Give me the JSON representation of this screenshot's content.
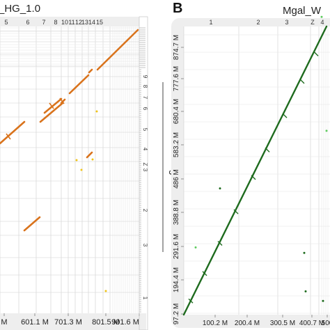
{
  "chart_data": [
    {
      "type": "scatter",
      "panel": "A",
      "title": "_HG_1.0",
      "ylabel": "",
      "top_chrom_labels": [
        "5",
        "6",
        "7",
        "8",
        "10",
        "11",
        "12",
        "13",
        "14",
        "15"
      ],
      "right_chrom_labels": [
        "9",
        "8",
        "7",
        "6",
        "5",
        "4",
        "Z",
        "3",
        "2",
        "3",
        "1"
      ],
      "x_ticks": [
        "M",
        "601.1 M",
        "701.3 M",
        "801.5 M",
        "901.6 M"
      ],
      "color": "#d9731c",
      "minor_color": "#f0c419",
      "segments": [
        {
          "x": [
            0,
            35
          ],
          "y": [
            206,
            175
          ]
        },
        {
          "x": [
            58,
            90
          ],
          "y": [
            175,
            148
          ]
        },
        {
          "x": [
            64,
            88
          ],
          "y": [
            162,
            142
          ]
        },
        {
          "x": [
            88,
            93
          ],
          "y": [
            148,
            143
          ]
        },
        {
          "x": [
            100,
            127
          ],
          "y": [
            134,
            108
          ]
        },
        {
          "x": [
            128,
            132
          ],
          "y": [
            104,
            100
          ]
        },
        {
          "x": [
            140,
            198
          ],
          "y": [
            100,
            43
          ]
        },
        {
          "x": [
            35,
            57
          ],
          "y": [
            331,
            312
          ]
        },
        {
          "x": [
            125,
            132
          ],
          "y": [
            226,
            219
          ]
        }
      ],
      "minor_points": [
        {
          "x": 117,
          "y": 244
        },
        {
          "x": 133,
          "y": 229
        },
        {
          "x": 152,
          "y": 418
        },
        {
          "x": 139,
          "y": 160
        },
        {
          "x": 110,
          "y": 230
        }
      ]
    },
    {
      "type": "scatter",
      "panel": "B",
      "title": "Mgal_W",
      "ylabel": "GRCg7b",
      "top_chrom_labels": [
        "1",
        "2",
        "3",
        "Z",
        "4"
      ],
      "x_ticks": [
        "100.2 M",
        "200.4 M",
        "300.5 M",
        "400.7 M",
        "500"
      ],
      "y_ticks": [
        "97.2 M",
        "194.4 M",
        "291.6 M",
        "388.8 M",
        "486 M",
        "583.2 M",
        "680.4 M",
        "777.6 M",
        "874.7 M"
      ],
      "color": "#1e6b1e",
      "minor_color": "#5ecb5e",
      "segments": [
        {
          "x": [
            0,
            205
          ],
          "y": [
            0,
            210
          ]
        }
      ],
      "minor_points": [
        {
          "x": 82,
          "y": 373
        },
        {
          "x": 113,
          "y": 322
        },
        {
          "x": 165,
          "y": 322
        },
        {
          "x": 173,
          "y": 45
        },
        {
          "x": 205,
          "y": 134
        },
        {
          "x": 175,
          "y": 17
        },
        {
          "x": 17,
          "y": 49
        },
        {
          "x": 52,
          "y": 92
        },
        {
          "x": 198,
          "y": 217
        },
        {
          "x": 200,
          "y": 10
        }
      ]
    }
  ],
  "labels": {
    "panel_b_letter": "B"
  },
  "colors": {
    "panel_bg": "#eeeeee",
    "grid": "#cfcfcf",
    "text": "#222222"
  }
}
